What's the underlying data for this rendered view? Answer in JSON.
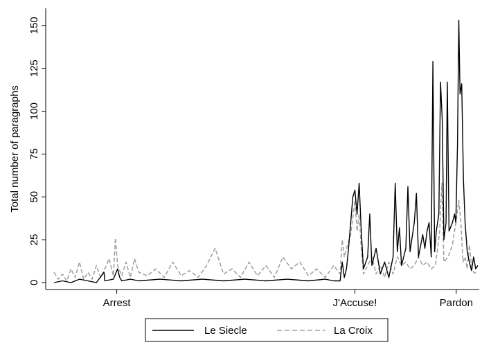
{
  "chart_data": {
    "type": "line",
    "title": "",
    "xlabel": "",
    "ylabel": "Total number of paragraphs",
    "ylim": [
      0,
      160
    ],
    "xlim": [
      0,
      1
    ],
    "yticks": [
      0,
      25,
      50,
      75,
      100,
      125,
      150
    ],
    "ytick_labels": [
      "0",
      "25",
      "50",
      "75",
      "100",
      "125",
      "150"
    ],
    "xticks": [
      {
        "label": "Arrest",
        "x": 0.148
      },
      {
        "label": "J'Accuse!",
        "x": 0.71
      },
      {
        "label": "Pardon",
        "x": 0.949
      }
    ],
    "grid": false,
    "legend_position": "bottom-center",
    "series": [
      {
        "name": "Le Siecle",
        "color": "#000000",
        "style": "solid",
        "points": [
          [
            0.0,
            0
          ],
          [
            0.02,
            1
          ],
          [
            0.04,
            0
          ],
          [
            0.06,
            2
          ],
          [
            0.08,
            1
          ],
          [
            0.1,
            0
          ],
          [
            0.118,
            6
          ],
          [
            0.12,
            1
          ],
          [
            0.14,
            2
          ],
          [
            0.15,
            8
          ],
          [
            0.155,
            3
          ],
          [
            0.16,
            1
          ],
          [
            0.18,
            2
          ],
          [
            0.2,
            1
          ],
          [
            0.25,
            2
          ],
          [
            0.3,
            1
          ],
          [
            0.35,
            2
          ],
          [
            0.4,
            1
          ],
          [
            0.45,
            2
          ],
          [
            0.5,
            1
          ],
          [
            0.55,
            2
          ],
          [
            0.6,
            1
          ],
          [
            0.64,
            2
          ],
          [
            0.66,
            1
          ],
          [
            0.675,
            1
          ],
          [
            0.68,
            12
          ],
          [
            0.685,
            3
          ],
          [
            0.69,
            8
          ],
          [
            0.695,
            20
          ],
          [
            0.7,
            35
          ],
          [
            0.705,
            50
          ],
          [
            0.71,
            54
          ],
          [
            0.715,
            40
          ],
          [
            0.72,
            58
          ],
          [
            0.725,
            30
          ],
          [
            0.73,
            8
          ],
          [
            0.74,
            15
          ],
          [
            0.745,
            40
          ],
          [
            0.75,
            10
          ],
          [
            0.76,
            20
          ],
          [
            0.77,
            5
          ],
          [
            0.78,
            12
          ],
          [
            0.79,
            3
          ],
          [
            0.8,
            15
          ],
          [
            0.805,
            58
          ],
          [
            0.81,
            18
          ],
          [
            0.815,
            32
          ],
          [
            0.82,
            10
          ],
          [
            0.83,
            20
          ],
          [
            0.835,
            56
          ],
          [
            0.84,
            18
          ],
          [
            0.85,
            35
          ],
          [
            0.855,
            52
          ],
          [
            0.86,
            15
          ],
          [
            0.87,
            28
          ],
          [
            0.875,
            20
          ],
          [
            0.88,
            30
          ],
          [
            0.885,
            35
          ],
          [
            0.89,
            15
          ],
          [
            0.894,
            129
          ],
          [
            0.898,
            18
          ],
          [
            0.902,
            30
          ],
          [
            0.908,
            40
          ],
          [
            0.912,
            117
          ],
          [
            0.916,
            95
          ],
          [
            0.92,
            25
          ],
          [
            0.925,
            35
          ],
          [
            0.928,
            117
          ],
          [
            0.932,
            30
          ],
          [
            0.94,
            35
          ],
          [
            0.945,
            40
          ],
          [
            0.948,
            35
          ],
          [
            0.952,
            80
          ],
          [
            0.955,
            153
          ],
          [
            0.958,
            110
          ],
          [
            0.962,
            116
          ],
          [
            0.966,
            60
          ],
          [
            0.97,
            35
          ],
          [
            0.975,
            18
          ],
          [
            0.98,
            12
          ],
          [
            0.985,
            7
          ],
          [
            0.99,
            15
          ],
          [
            0.995,
            8
          ],
          [
            1.0,
            10
          ]
        ]
      },
      {
        "name": "La Croix",
        "color": "#9e9e9e",
        "style": "dashed",
        "points": [
          [
            0.0,
            6
          ],
          [
            0.01,
            2
          ],
          [
            0.02,
            5
          ],
          [
            0.03,
            1
          ],
          [
            0.04,
            8
          ],
          [
            0.05,
            3
          ],
          [
            0.06,
            12
          ],
          [
            0.07,
            2
          ],
          [
            0.08,
            6
          ],
          [
            0.09,
            2
          ],
          [
            0.1,
            10
          ],
          [
            0.11,
            3
          ],
          [
            0.12,
            8
          ],
          [
            0.13,
            14
          ],
          [
            0.14,
            4
          ],
          [
            0.145,
            26
          ],
          [
            0.15,
            10
          ],
          [
            0.16,
            4
          ],
          [
            0.17,
            12
          ],
          [
            0.18,
            3
          ],
          [
            0.19,
            14
          ],
          [
            0.2,
            6
          ],
          [
            0.22,
            4
          ],
          [
            0.24,
            8
          ],
          [
            0.26,
            3
          ],
          [
            0.28,
            12
          ],
          [
            0.3,
            4
          ],
          [
            0.32,
            7
          ],
          [
            0.34,
            3
          ],
          [
            0.36,
            10
          ],
          [
            0.38,
            20
          ],
          [
            0.4,
            5
          ],
          [
            0.42,
            8
          ],
          [
            0.44,
            3
          ],
          [
            0.46,
            12
          ],
          [
            0.48,
            4
          ],
          [
            0.5,
            10
          ],
          [
            0.52,
            3
          ],
          [
            0.54,
            15
          ],
          [
            0.56,
            8
          ],
          [
            0.58,
            12
          ],
          [
            0.6,
            4
          ],
          [
            0.62,
            8
          ],
          [
            0.64,
            3
          ],
          [
            0.66,
            10
          ],
          [
            0.675,
            5
          ],
          [
            0.68,
            25
          ],
          [
            0.685,
            15
          ],
          [
            0.69,
            20
          ],
          [
            0.7,
            28
          ],
          [
            0.705,
            38
          ],
          [
            0.71,
            48
          ],
          [
            0.715,
            30
          ],
          [
            0.72,
            40
          ],
          [
            0.725,
            20
          ],
          [
            0.73,
            5
          ],
          [
            0.74,
            10
          ],
          [
            0.75,
            15
          ],
          [
            0.76,
            5
          ],
          [
            0.77,
            10
          ],
          [
            0.78,
            3
          ],
          [
            0.79,
            12
          ],
          [
            0.8,
            5
          ],
          [
            0.81,
            15
          ],
          [
            0.82,
            10
          ],
          [
            0.83,
            12
          ],
          [
            0.84,
            8
          ],
          [
            0.85,
            10
          ],
          [
            0.86,
            15
          ],
          [
            0.87,
            10
          ],
          [
            0.88,
            12
          ],
          [
            0.89,
            8
          ],
          [
            0.9,
            10
          ],
          [
            0.91,
            30
          ],
          [
            0.915,
            58
          ],
          [
            0.92,
            12
          ],
          [
            0.93,
            15
          ],
          [
            0.94,
            22
          ],
          [
            0.95,
            38
          ],
          [
            0.955,
            48
          ],
          [
            0.96,
            35
          ],
          [
            0.965,
            12
          ],
          [
            0.97,
            15
          ],
          [
            0.975,
            8
          ],
          [
            0.98,
            22
          ],
          [
            0.985,
            10
          ],
          [
            0.99,
            6
          ],
          [
            1.0,
            5
          ]
        ]
      }
    ]
  }
}
